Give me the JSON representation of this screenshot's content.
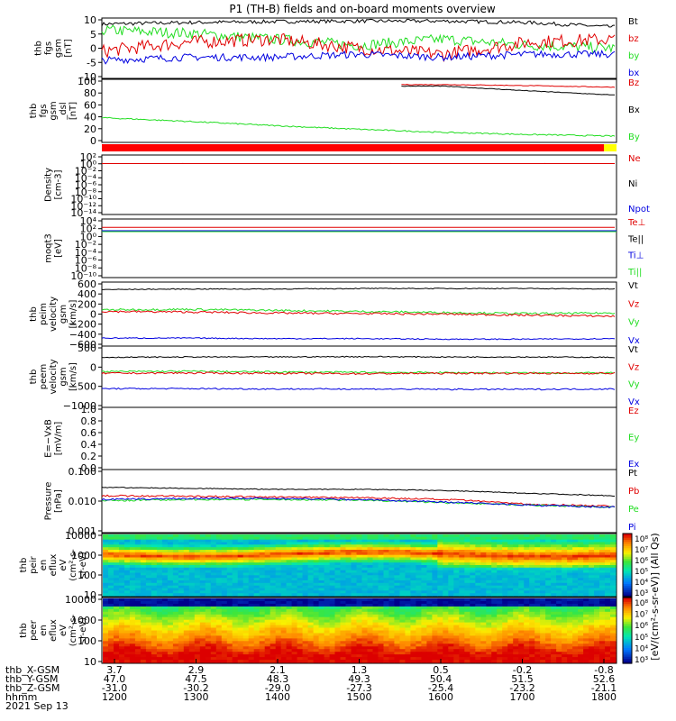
{
  "title": "P1 (TH-B) fields and on-board moments overview",
  "colors": {
    "black": "#000000",
    "red": "#e00000",
    "green": "#22dd22",
    "blue": "#0000e0"
  },
  "panels": [
    {
      "ylabel": [
        "thb",
        "fgs",
        "gsm",
        "[nT]"
      ],
      "ticks": [
        "10",
        "5",
        "0",
        "-5",
        "-10"
      ],
      "legend": [
        {
          "text": "Bt",
          "color": "black"
        },
        {
          "text": "bz",
          "color": "red"
        },
        {
          "text": "by",
          "color": "green"
        },
        {
          "text": "bx",
          "color": "blue"
        }
      ]
    },
    {
      "ylabel": [
        "thb",
        "fgs",
        "gsm",
        "_dsl",
        "[nT]"
      ],
      "ticks": [
        "100",
        "80",
        "60",
        "40",
        "20",
        "0"
      ],
      "legend": [
        {
          "text": "Bz",
          "color": "red"
        },
        {
          "text": "Bx",
          "color": "black"
        },
        {
          "text": "By",
          "color": "green"
        }
      ]
    },
    {
      "ylabel": [
        "Density",
        "[cm-3]"
      ],
      "ticks": [
        "10²",
        "10⁰",
        "10⁻²",
        "10⁻⁴",
        "10⁻⁶",
        "10⁻⁸",
        "10⁻¹⁰",
        "10⁻¹²",
        "10⁻¹⁴"
      ],
      "legend": [
        {
          "text": "Ne",
          "color": "red"
        },
        {
          "text": "Ni",
          "color": "black"
        },
        {
          "text": "Npot",
          "color": "blue"
        }
      ]
    },
    {
      "ylabel": [
        "moqt3",
        "[eV]"
      ],
      "ticks": [
        "10⁴",
        "10²",
        "10⁰",
        "10⁻²",
        "10⁻⁴",
        "10⁻⁶",
        "10⁻⁸",
        "10⁻¹⁰"
      ],
      "legend": [
        {
          "text": "Te⊥",
          "color": "red"
        },
        {
          "text": "Te||",
          "color": "black"
        },
        {
          "text": "Ti⊥",
          "color": "blue"
        },
        {
          "text": "Ti||",
          "color": "green"
        }
      ]
    },
    {
      "ylabel": [
        "thb",
        "peim",
        "velocity",
        "gsm",
        "[km/s]"
      ],
      "ticks": [
        "600",
        "400",
        "200",
        "0",
        "−200",
        "−400",
        "−600"
      ],
      "legend": [
        {
          "text": "Vt",
          "color": "black"
        },
        {
          "text": "Vz",
          "color": "red"
        },
        {
          "text": "Vy",
          "color": "green"
        },
        {
          "text": "Vx",
          "color": "blue"
        }
      ]
    },
    {
      "ylabel": [
        "thb",
        "peem",
        "velocity",
        "gsm",
        "[km/s]"
      ],
      "ticks": [
        "500",
        "0",
        "−500",
        "−1000"
      ],
      "legend": [
        {
          "text": "Vt",
          "color": "black"
        },
        {
          "text": "Vz",
          "color": "red"
        },
        {
          "text": "Vy",
          "color": "green"
        },
        {
          "text": "Vx",
          "color": "blue"
        }
      ]
    },
    {
      "ylabel": [
        "E=−VxB",
        "[mV/m]"
      ],
      "ticks": [
        "1.0",
        "0.8",
        "0.6",
        "0.4",
        "0.2",
        "0.0"
      ],
      "legend": [
        {
          "text": "Ez",
          "color": "red"
        },
        {
          "text": "Ey",
          "color": "green"
        },
        {
          "text": "Ex",
          "color": "blue"
        }
      ]
    },
    {
      "ylabel": [
        "Pressure",
        "[nPa]"
      ],
      "ticks": [
        "0.100",
        "0.010",
        "0.001"
      ],
      "legend": [
        {
          "text": "Pt",
          "color": "black"
        },
        {
          "text": "Pb",
          "color": "red"
        },
        {
          "text": "Pe",
          "color": "green"
        },
        {
          "text": "Pi",
          "color": "blue"
        }
      ]
    },
    {
      "ylabel": [
        "thb",
        "peir",
        "en",
        "eflux",
        "eV",
        "(cm²-s-",
        "sr-eV)"
      ],
      "ticks": [
        "10000",
        "1000",
        "100",
        "10"
      ],
      "legend": []
    },
    {
      "ylabel": [
        "thb",
        "peer",
        "en",
        "eflux",
        "eV",
        "(cm²-s-",
        "sr-eV)"
      ],
      "ticks": [
        "10000",
        "1000",
        "100",
        "10"
      ],
      "legend": []
    }
  ],
  "colorbars": [
    {
      "ticks": [
        "10⁸",
        "10⁷",
        "10⁶",
        "10⁵",
        "10⁴",
        "10³"
      ]
    },
    {
      "ticks": [
        "10⁸",
        "10⁷",
        "10⁶",
        "10⁵",
        "10⁴",
        "10³"
      ]
    }
  ],
  "colorbar_label": "[eV/(cm²-s-sr-eV)] (All Qs)",
  "ephemeris": {
    "rows": [
      {
        "label": "thb_X-GSM",
        "values": [
          "3.7",
          "2.9",
          "2.1",
          "1.3",
          "0.5",
          "-0.2",
          "-0.8"
        ]
      },
      {
        "label": "thb_Y-GSM",
        "values": [
          "47.0",
          "47.5",
          "48.3",
          "49.3",
          "50.4",
          "51.5",
          "52.6"
        ]
      },
      {
        "label": "thb_Z-GSM",
        "values": [
          "-31.0",
          "-30.2",
          "-29.0",
          "-27.3",
          "-25.4",
          "-23.2",
          "-21.1"
        ]
      },
      {
        "label": "hhmm",
        "values": [
          "1200",
          "1300",
          "1400",
          "1500",
          "1600",
          "1700",
          "1800"
        ]
      }
    ],
    "date": "2021 Sep 13"
  },
  "chart_data": {
    "type": "line",
    "title": "P1 (TH-B) fields and on-board moments overview",
    "x": [
      "1200",
      "1300",
      "1400",
      "1500",
      "1600",
      "1700",
      "1800"
    ],
    "xlabel": "hhmm",
    "panels": [
      {
        "ylim": [
          -10,
          10
        ],
        "series": [
          {
            "name": "Bt",
            "values": [
              8,
              8.5,
              8.8,
              9,
              9,
              8.5,
              7
            ]
          },
          {
            "name": "bz",
            "values": [
              -1,
              2,
              3,
              0,
              -2,
              2,
              3
            ]
          },
          {
            "name": "by",
            "values": [
              6,
              5,
              3,
              1,
              3,
              1,
              0
            ]
          },
          {
            "name": "bx",
            "values": [
              -4,
              -3,
              -3,
              -2,
              -3,
              -2,
              -2
            ]
          }
        ]
      },
      {
        "ylim": [
          -10,
          110
        ],
        "series": [
          {
            "name": "Bz",
            "values": [
              null,
              null,
              null,
              null,
              100,
              98,
              95
            ]
          },
          {
            "name": "Bx",
            "values": [
              null,
              null,
              null,
              null,
              97,
              88,
              80
            ]
          },
          {
            "name": "By",
            "values": [
              37,
              30,
              22,
              15,
              9,
              5,
              2
            ]
          }
        ]
      },
      {
        "ylim": [
          "1e-14",
          "1e2"
        ],
        "series": [
          {
            "name": "Ne",
            "values": [
              0.5,
              0.5,
              0.5,
              0.5,
              0.5,
              0.5,
              0.5
            ]
          }
        ]
      },
      {
        "ylim": [
          "1e-10",
          "1e4"
        ],
        "series": [
          {
            "name": "Te⊥",
            "values": [
              100,
              100,
              100,
              100,
              100,
              100,
              100
            ]
          }
        ]
      },
      {
        "ylim": [
          -600,
          600
        ],
        "series": [
          {
            "name": "Vt",
            "values": [
              460,
              470,
              470,
              480,
              480,
              480,
              470
            ]
          },
          {
            "name": "Vz",
            "values": [
              50,
              40,
              20,
              10,
              0,
              -20,
              -40
            ]
          },
          {
            "name": "Vy",
            "values": [
              80,
              90,
              70,
              50,
              30,
              10,
              20
            ]
          },
          {
            "name": "Vx",
            "values": [
              -450,
              -450,
              -460,
              -460,
              -470,
              -470,
              -460
            ]
          }
        ]
      },
      {
        "ylim": [
          -1000,
          800
        ],
        "series": [
          {
            "name": "Vt",
            "values": [
              470,
              480,
              480,
              490,
              480,
              480,
              470
            ]
          },
          {
            "name": "Vz",
            "values": [
              0,
              10,
              0,
              -10,
              0,
              0,
              0
            ]
          },
          {
            "name": "Vy",
            "values": [
              50,
              60,
              40,
              30,
              20,
              10,
              10
            ]
          },
          {
            "name": "Vx",
            "values": [
              -450,
              -450,
              -460,
              -460,
              -470,
              -470,
              -460
            ]
          }
        ]
      },
      {
        "ylim": [
          0,
          1
        ],
        "series": []
      },
      {
        "ylim": [
          "0.001",
          "0.3"
        ],
        "series": [
          {
            "name": "Pt",
            "values": [
              0.06,
              0.055,
              0.05,
              0.05,
              0.045,
              0.035,
              0.028
            ]
          },
          {
            "name": "Pb",
            "values": [
              0.028,
              0.027,
              0.025,
              0.024,
              0.02,
              0.013,
              0.011
            ]
          },
          {
            "name": "Pe",
            "values": [
              0.018,
              0.02,
              0.02,
              0.019,
              0.015,
              0.012,
              0.01
            ]
          },
          {
            "name": "Pi",
            "values": [
              0.02,
              0.022,
              0.022,
              0.02,
              0.016,
              0.012,
              0.01
            ]
          }
        ]
      }
    ]
  }
}
